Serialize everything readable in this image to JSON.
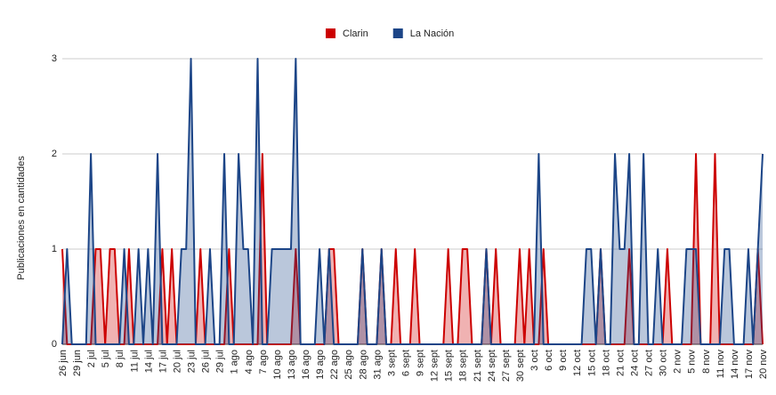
{
  "chart_data": {
    "type": "area",
    "y_label": "Publicaciones en cantidades",
    "categories": [
      "26 jun",
      null,
      null,
      "29 jun",
      null,
      null,
      "2 jul",
      null,
      null,
      "5 jul",
      null,
      null,
      "8 jul",
      null,
      null,
      "11 jul",
      null,
      null,
      "14 jul",
      null,
      null,
      "17 jul",
      null,
      null,
      "20 jul",
      null,
      null,
      "23 jul",
      null,
      null,
      "26 jul",
      null,
      null,
      "29 jul",
      null,
      null,
      "1 ago",
      null,
      null,
      "4 ago",
      null,
      null,
      "7 ago",
      null,
      null,
      "10 ago",
      null,
      null,
      "13 ago",
      null,
      null,
      "16 ago",
      null,
      null,
      "19 ago",
      null,
      null,
      "22 ago",
      null,
      null,
      "25 ago",
      null,
      null,
      "28 ago",
      null,
      null,
      "31 ago",
      null,
      null,
      "3 sept",
      null,
      null,
      "6 sept",
      null,
      null,
      "9 sept",
      null,
      null,
      "12 sept",
      null,
      null,
      "15 sept",
      null,
      null,
      "18 sept",
      null,
      null,
      "21 sept",
      null,
      null,
      "24 sept",
      null,
      null,
      "27 sept",
      null,
      null,
      "30 sept",
      null,
      null,
      "3 oct",
      null,
      null,
      "6 oct",
      null,
      null,
      "9 oct",
      null,
      null,
      "12 oct",
      null,
      null,
      "15 oct",
      null,
      null,
      "18 oct",
      null,
      null,
      "21 oct",
      null,
      null,
      "24 oct",
      null,
      null,
      "27 oct",
      null,
      null,
      "30 oct",
      null,
      null,
      "2 nov",
      null,
      null,
      "5 nov",
      null,
      null,
      "8 nov",
      null,
      null,
      "11 nov",
      null,
      null,
      "14 nov",
      null,
      null,
      "17 nov",
      null,
      null,
      "20 nov"
    ],
    "series": [
      {
        "name": "Clarin",
        "color": "#cc0000",
        "values": [
          1,
          0,
          0,
          0,
          0,
          0,
          0,
          1,
          1,
          0,
          1,
          1,
          0,
          0,
          1,
          0,
          0,
          0,
          0,
          0,
          0,
          1,
          0,
          1,
          0,
          0,
          0,
          0,
          0,
          1,
          0,
          0,
          0,
          0,
          0,
          1,
          0,
          0,
          0,
          0,
          0,
          0,
          2,
          0,
          0,
          0,
          0,
          0,
          0,
          1,
          0,
          0,
          0,
          0,
          0,
          0,
          1,
          1,
          0,
          0,
          0,
          0,
          0,
          1,
          0,
          0,
          0,
          1,
          0,
          0,
          1,
          0,
          0,
          0,
          1,
          0,
          0,
          0,
          0,
          0,
          0,
          1,
          0,
          0,
          1,
          1,
          0,
          0,
          0,
          1,
          0,
          1,
          0,
          0,
          0,
          0,
          1,
          0,
          1,
          0,
          0,
          1,
          0,
          0,
          0,
          0,
          0,
          0,
          0,
          0,
          0,
          0,
          0,
          1,
          0,
          0,
          0,
          0,
          0,
          1,
          0,
          0,
          0,
          0,
          0,
          0,
          0,
          1,
          0,
          0,
          0,
          0,
          0,
          2,
          0,
          0,
          0,
          2,
          0,
          0,
          0,
          0,
          0,
          0,
          0,
          0,
          1,
          0
        ]
      },
      {
        "name": "La Nación",
        "color": "#1c4587",
        "values": [
          0,
          1,
          0,
          0,
          0,
          0,
          2,
          0,
          0,
          0,
          0,
          0,
          0,
          1,
          0,
          0,
          1,
          0,
          1,
          0,
          2,
          0,
          0,
          0,
          0,
          1,
          1,
          3,
          0,
          0,
          0,
          1,
          0,
          0,
          2,
          0,
          0,
          2,
          1,
          1,
          0,
          3,
          0,
          0,
          1,
          1,
          1,
          1,
          1,
          3,
          0,
          0,
          0,
          0,
          1,
          0,
          1,
          0,
          0,
          0,
          0,
          0,
          0,
          1,
          0,
          0,
          0,
          1,
          0,
          0,
          0,
          0,
          0,
          0,
          0,
          0,
          0,
          0,
          0,
          0,
          0,
          0,
          0,
          0,
          0,
          0,
          0,
          0,
          0,
          1,
          0,
          0,
          0,
          0,
          0,
          0,
          0,
          0,
          0,
          0,
          2,
          0,
          0,
          0,
          0,
          0,
          0,
          0,
          0,
          0,
          1,
          1,
          0,
          1,
          0,
          0,
          2,
          1,
          1,
          2,
          0,
          0,
          2,
          0,
          0,
          1,
          0,
          0,
          0,
          0,
          0,
          1,
          1,
          1,
          0,
          0,
          0,
          0,
          0,
          1,
          1,
          0,
          0,
          0,
          1,
          0,
          1,
          2
        ]
      }
    ],
    "ylim": [
      0,
      3
    ],
    "yticks": [
      0,
      1,
      2,
      3
    ],
    "grid": true,
    "legend": "top"
  }
}
